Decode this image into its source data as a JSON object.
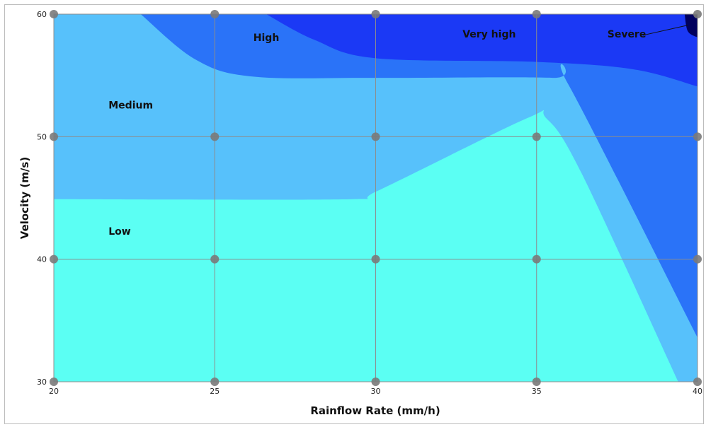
{
  "chart_data": {
    "type": "contour",
    "xlabel": "Rainflow Rate (mm/h)",
    "ylabel": "Velocity (m/s)",
    "xlim": [
      20,
      40
    ],
    "ylim": [
      30,
      60
    ],
    "xticks": [
      "20",
      "25",
      "30",
      "35",
      "40"
    ],
    "yticks": [
      "30",
      "40",
      "50",
      "60"
    ],
    "grid": true,
    "grid_points": {
      "x": [
        20,
        25,
        30,
        35,
        40
      ],
      "y": [
        30,
        40,
        50,
        60
      ]
    },
    "zones": [
      {
        "label": "Low",
        "color": "#5bfff3",
        "label_at": [
          21.7,
          42
        ]
      },
      {
        "label": "Medium",
        "color": "#57c1fb",
        "label_at": [
          21.7,
          52.3
        ]
      },
      {
        "label": "High",
        "color": "#2a73f8",
        "label_at": [
          26.2,
          57.8
        ]
      },
      {
        "label": "Very high",
        "color": "#1b39f5",
        "label_at": [
          32.7,
          58.1
        ]
      },
      {
        "label": "Severe",
        "color": "#00005e",
        "label_at": [
          37.2,
          58.1
        ]
      }
    ],
    "boundaries": {
      "low_medium": [
        [
          20,
          44.9
        ],
        [
          29.3,
          44.9
        ],
        [
          30,
          45.5
        ],
        [
          34.7,
          51.5
        ],
        [
          35.3,
          51.5
        ],
        [
          36.4,
          47
        ],
        [
          39.4,
          30
        ]
      ],
      "medium_high": [
        [
          22.7,
          60
        ],
        [
          24.4,
          56.3
        ],
        [
          26.2,
          54.9
        ],
        [
          30,
          54.8
        ],
        [
          35.5,
          54.8
        ],
        [
          36,
          54.2
        ],
        [
          40,
          33.6
        ]
      ],
      "high_veryhigh": [
        [
          26.6,
          60
        ],
        [
          28.1,
          57.9
        ],
        [
          30,
          56.4
        ],
        [
          35,
          56.1
        ],
        [
          38,
          55.5
        ],
        [
          40,
          54.1
        ]
      ],
      "veryhigh_severe": [
        [
          39.6,
          60
        ],
        [
          39.7,
          58.6
        ],
        [
          40,
          58.1
        ]
      ]
    }
  }
}
